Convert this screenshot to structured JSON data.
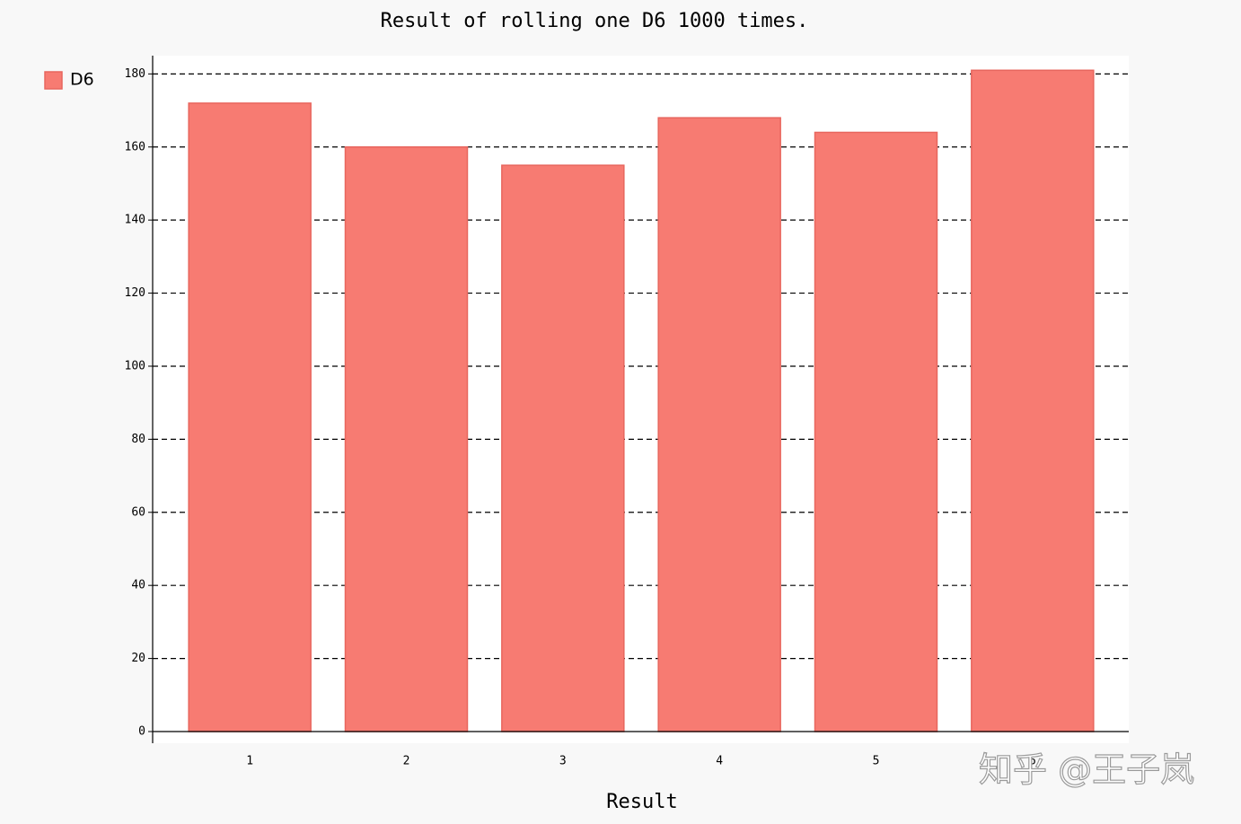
{
  "chart_data": {
    "type": "bar",
    "title": "Result of rolling one D6 1000 times.",
    "x_label": "Result",
    "categories": [
      "1",
      "2",
      "3",
      "4",
      "5",
      "6"
    ],
    "series": [
      {
        "name": "D6",
        "color": "#f77b72",
        "values": [
          172,
          160,
          155,
          168,
          164,
          181
        ]
      }
    ],
    "ylim": [
      0,
      185
    ],
    "yticks": [
      0,
      20,
      40,
      60,
      80,
      100,
      120,
      140,
      160,
      180
    ],
    "grid": true,
    "legend": "top-left",
    "watermark": "知乎 @王子岚"
  }
}
